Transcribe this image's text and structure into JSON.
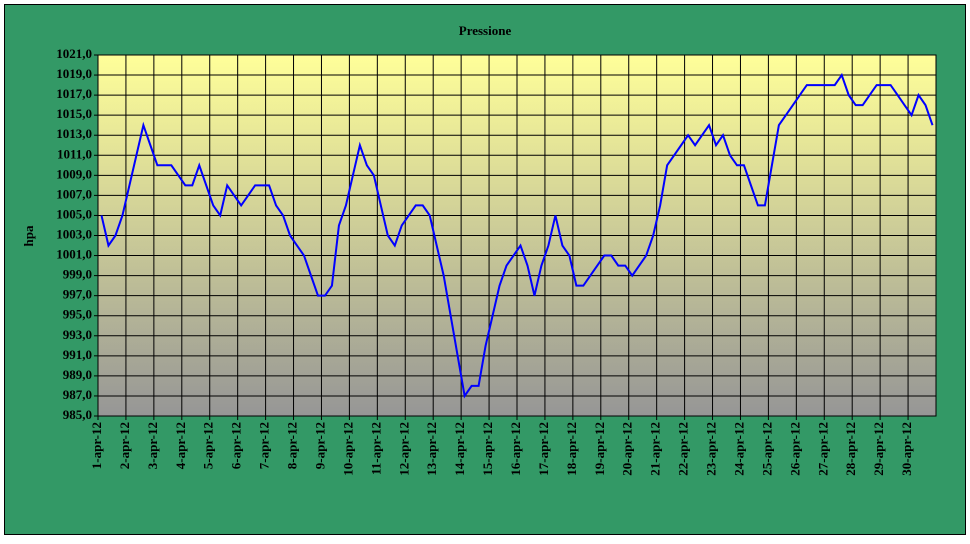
{
  "chart_data": {
    "type": "line",
    "title": "Pressione",
    "y_label": "hpa",
    "categories": [
      "1-apr-12",
      null,
      null,
      null,
      "2-apr-12",
      null,
      null,
      null,
      "3-apr-12",
      null,
      null,
      null,
      "4-apr-12",
      null,
      null,
      null,
      "5-apr-12",
      null,
      null,
      null,
      "6-apr-12",
      null,
      null,
      null,
      "7-apr-12",
      null,
      null,
      null,
      "8-apr-12",
      null,
      null,
      null,
      "9-apr-12",
      null,
      null,
      null,
      "10-apr-12",
      null,
      null,
      null,
      "11-apr-12",
      null,
      null,
      null,
      "12-apr-12",
      null,
      null,
      null,
      "13-apr-12",
      null,
      null,
      null,
      "14-apr-12",
      null,
      null,
      null,
      "15-apr-12",
      null,
      null,
      null,
      "16-apr-12",
      null,
      null,
      null,
      "17-apr-12",
      null,
      null,
      null,
      "18-apr-12",
      null,
      null,
      null,
      "19-apr-12",
      null,
      null,
      null,
      "20-apr-12",
      null,
      null,
      null,
      "21-apr-12",
      null,
      null,
      null,
      "22-apr-12",
      null,
      null,
      null,
      "23-apr-12",
      null,
      null,
      null,
      "24-apr-12",
      null,
      null,
      null,
      "25-apr-12",
      null,
      null,
      null,
      "26-apr-12",
      null,
      null,
      null,
      "27-apr-12",
      null,
      null,
      null,
      "28-apr-12",
      null,
      null,
      null,
      "29-apr-12",
      null,
      null,
      null,
      "30-apr-12",
      null,
      null,
      null
    ],
    "series": [
      {
        "color": "#0000ff",
        "values": [
          1005,
          1002,
          1003,
          1005,
          1008,
          1011,
          1014,
          1012,
          1010,
          1010,
          1010,
          1009,
          1008,
          1008,
          1010,
          1008,
          1006,
          1005,
          1008,
          1007,
          1006,
          1007,
          1008,
          1008,
          1008,
          1006,
          1005,
          1003,
          1002,
          1001,
          999,
          997,
          997,
          998,
          1004,
          1006,
          1009,
          1012,
          1010,
          1009,
          1006,
          1003,
          1002,
          1004,
          1005,
          1006,
          1006,
          1005,
          1002,
          999,
          995,
          991,
          987,
          988,
          988,
          992,
          995,
          998,
          1000,
          1001,
          1002,
          1000,
          997,
          1000,
          1002,
          1005,
          1002,
          1001,
          998,
          998,
          999,
          1000,
          1001,
          1001,
          1000,
          1000,
          999,
          1000,
          1001,
          1003,
          1006,
          1010,
          1011,
          1012,
          1013,
          1012,
          1013,
          1014,
          1012,
          1013,
          1011,
          1010,
          1010,
          1008,
          1006,
          1006,
          1010,
          1014,
          1015,
          1016,
          1017,
          1018,
          1018,
          1018,
          1018,
          1018,
          1019,
          1017,
          1016,
          1016,
          1017,
          1018,
          1018,
          1018,
          1017,
          1016,
          1015,
          1017,
          1016,
          1014
        ]
      }
    ],
    "ylim": [
      985,
      1021
    ],
    "yticks": [
      {
        "value": 985,
        "label": "985,0"
      },
      {
        "value": 987,
        "label": "987,0"
      },
      {
        "value": 989,
        "label": "989,0"
      },
      {
        "value": 991,
        "label": "991,0"
      },
      {
        "value": 993,
        "label": "993,0"
      },
      {
        "value": 995,
        "label": "995,0"
      },
      {
        "value": 997,
        "label": "997,0"
      },
      {
        "value": 999,
        "label": "999,0"
      },
      {
        "value": 1001,
        "label": "1001,0"
      },
      {
        "value": 1003,
        "label": "1003,0"
      },
      {
        "value": 1005,
        "label": "1005,0"
      },
      {
        "value": 1007,
        "label": "1007,0"
      },
      {
        "value": 1009,
        "label": "1009,0"
      },
      {
        "value": 1011,
        "label": "1011,0"
      },
      {
        "value": 1013,
        "label": "1013,0"
      },
      {
        "value": 1015,
        "label": "1015,0"
      },
      {
        "value": 1017,
        "label": "1017,0"
      },
      {
        "value": 1019,
        "label": "1019,0"
      },
      {
        "value": 1021,
        "label": "1021,0"
      }
    ],
    "grid": true
  }
}
